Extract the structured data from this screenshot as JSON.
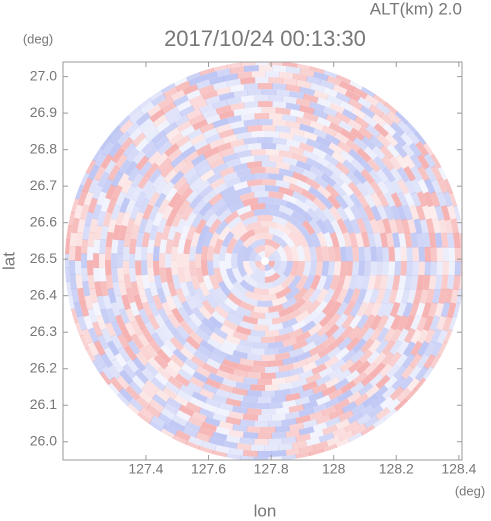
{
  "chart_data": {
    "type": "radar-ppi",
    "title": "2017/10/24 00:13:30",
    "annotation": "ALT(km) 2.0",
    "x_label": "lon",
    "y_label": "lat",
    "x_unit": "(deg)",
    "y_unit": "(deg)",
    "xlim": [
      127.135,
      128.41
    ],
    "ylim": [
      25.95,
      27.04
    ],
    "xticks": [
      127.4,
      127.6,
      127.8,
      128.0,
      128.2,
      128.4
    ],
    "yticks": [
      26.0,
      26.1,
      26.2,
      26.3,
      26.4,
      26.5,
      26.6,
      26.7,
      26.8,
      26.9,
      27.0
    ],
    "colors": [
      "#f4a6a6",
      "#b4bdf2"
    ]
  }
}
